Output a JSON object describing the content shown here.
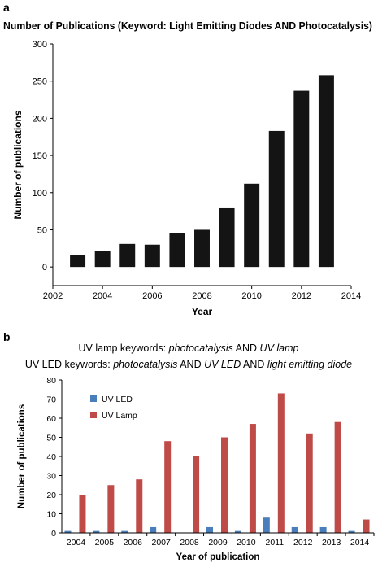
{
  "panels": [
    {
      "letter": "a",
      "title": "Number of Publications (Keyword: Light Emitting Diodes AND Photocatalysis)"
    },
    {
      "letter": "b",
      "caption_lines": [
        [
          {
            "t": "UV lamp keywords: ",
            "i": false
          },
          {
            "t": "photocatalysis",
            "i": true
          },
          {
            "t": " AND ",
            "i": false
          },
          {
            "t": "UV lamp",
            "i": true
          }
        ],
        [
          {
            "t": "UV LED keywords: ",
            "i": false
          },
          {
            "t": "photocatalysis",
            "i": true
          },
          {
            "t": " AND ",
            "i": false
          },
          {
            "t": "UV LED",
            "i": true
          },
          {
            "t": " AND ",
            "i": false
          },
          {
            "t": "light emitting diode",
            "i": true
          }
        ]
      ]
    }
  ],
  "chart_data": [
    {
      "type": "bar",
      "title": "Number of Publications (Keyword: Light Emitting Diodes AND Photocatalysis)",
      "xlabel": "Year",
      "ylabel": "Number of publications",
      "x": [
        2003,
        2004,
        2005,
        2006,
        2007,
        2008,
        2009,
        2010,
        2011,
        2012,
        2013
      ],
      "values": [
        16,
        22,
        31,
        30,
        46,
        50,
        79,
        112,
        183,
        237,
        258
      ],
      "xlim": [
        2002,
        2014
      ],
      "ylim": [
        -25,
        300
      ],
      "xticks": [
        2002,
        2004,
        2006,
        2008,
        2010,
        2012,
        2014
      ],
      "yticks": [
        0,
        50,
        100,
        150,
        200,
        250,
        300
      ],
      "bar_color": "#141414",
      "grid": false
    },
    {
      "type": "bar",
      "xlabel": "Year of publication",
      "ylabel": "Number of publications",
      "categories": [
        "2004",
        "2005",
        "2006",
        "2007",
        "2008",
        "2009",
        "2010",
        "2011",
        "2012",
        "2013",
        "2014"
      ],
      "series": [
        {
          "name": "UV LED",
          "color": "#4a7ebb",
          "values": [
            1,
            1,
            1,
            3,
            0,
            3,
            1,
            8,
            3,
            3,
            1
          ]
        },
        {
          "name": "UV Lamp",
          "color": "#be4b48",
          "values": [
            20,
            25,
            28,
            48,
            40,
            50,
            57,
            73,
            52,
            58,
            7
          ]
        }
      ],
      "ylim": [
        0,
        80
      ],
      "yticks": [
        0,
        10,
        20,
        30,
        40,
        50,
        60,
        70,
        80
      ],
      "legend": "top-left",
      "grid": false
    }
  ]
}
